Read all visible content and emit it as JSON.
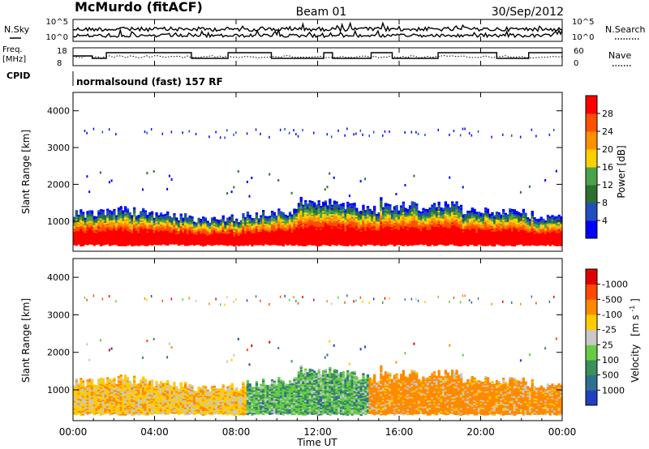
{
  "header": {
    "station": "McMurdo (fitACF)",
    "beam": "Beam 01",
    "date": "30/Sep/2012"
  },
  "noise_panel": {
    "left_label": "N.Sky",
    "right_label": "N.Search",
    "left_ticks": [
      "10^5",
      "10^0"
    ],
    "right_ticks": [
      "10^5",
      "10^0"
    ]
  },
  "freq_panel": {
    "left_label_line1": "Freq.",
    "left_label_line2": "[MHz]",
    "right_label": "Nave",
    "left_ticks": [
      "18",
      "8"
    ],
    "right_ticks": [
      "60",
      "0"
    ]
  },
  "cpid": {
    "label": "CPID",
    "value": "normalsound (fast) 157 RF"
  },
  "chart_data": [
    {
      "type": "heatmap",
      "title": "Power",
      "ylabel": "Slant Range [km]",
      "ylim": [
        180,
        4500
      ],
      "yticks": [
        "1000",
        "2000",
        "3000",
        "4000"
      ],
      "xlim_hours": [
        0,
        24
      ],
      "colorbar": {
        "label": "Power [dB]",
        "ticks": [
          "4",
          "8",
          "12",
          "16",
          "20",
          "24",
          "28"
        ],
        "colors": [
          "#0000ff",
          "#1f4fbf",
          "#2f6f2f",
          "#4aa34a",
          "#ffd000",
          "#ff9000",
          "#ff5000",
          "#ff0000"
        ]
      },
      "description_bands": [
        {
          "from_km": 300,
          "to_km": 900,
          "level_db": 28
        },
        {
          "from_km": 900,
          "to_km": 1200,
          "level_db": 16
        },
        {
          "from_km": 1200,
          "to_km": 1500,
          "level_db": 6
        }
      ]
    },
    {
      "type": "heatmap",
      "title": "Velocity",
      "ylabel": "Slant Range [km]",
      "ylim": [
        180,
        4500
      ],
      "yticks": [
        "1000",
        "2000",
        "3000",
        "4000"
      ],
      "xlim_hours": [
        0,
        24
      ],
      "colorbar": {
        "label_main": "Velocity",
        "label_units": "[m s",
        "label_exp": "-1",
        "label_close": "]",
        "ticks": [
          "1000",
          "500",
          "100",
          "25",
          "-25",
          "-100",
          "-500",
          "-1000"
        ],
        "colors": [
          "#2040c0",
          "#2f6f8f",
          "#3a8f5a",
          "#66cc44",
          "#c8c8c8",
          "#ffcc00",
          "#ff8a00",
          "#ff4a00",
          "#e00000"
        ]
      }
    }
  ],
  "x_axis": {
    "ticks": [
      "00:00",
      "04:00",
      "08:00",
      "12:00",
      "16:00",
      "20:00",
      "00:00"
    ],
    "label": "Time UT"
  }
}
